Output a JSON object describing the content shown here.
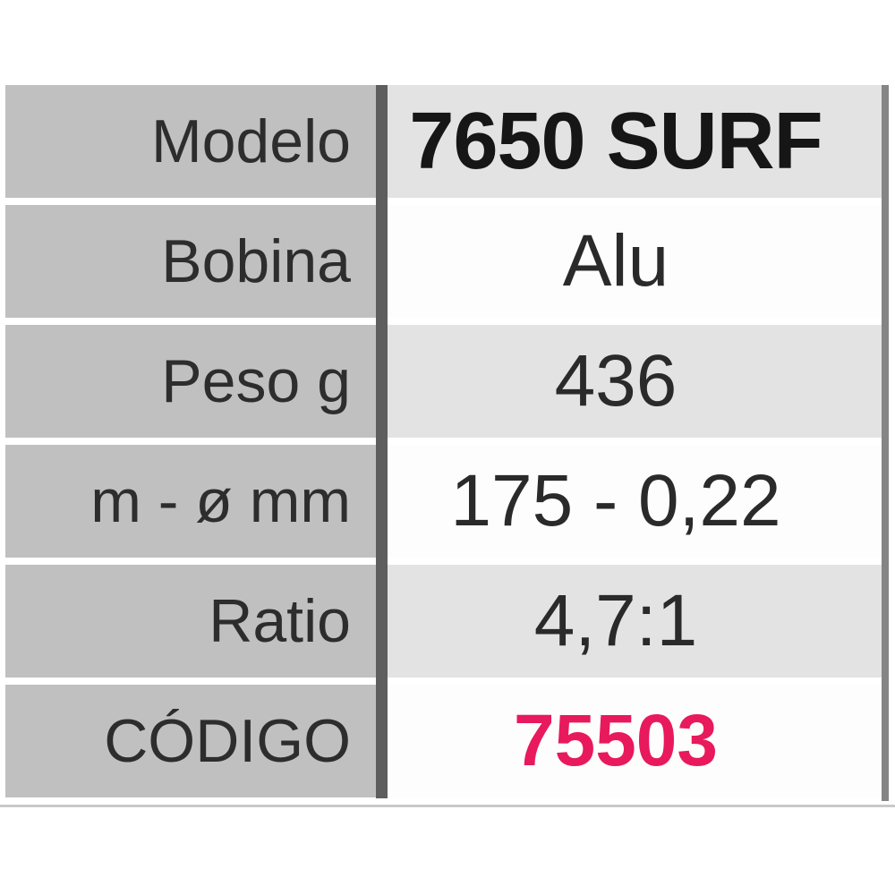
{
  "table": {
    "rows": [
      {
        "label": "Modelo",
        "value": "7650 SURF"
      },
      {
        "label": "Bobina",
        "value": "Alu"
      },
      {
        "label": "Peso g",
        "value": "436"
      },
      {
        "label": "m - ø mm",
        "value": "175 - 0,22"
      },
      {
        "label": "Ratio",
        "value": "4,7:1"
      },
      {
        "label": "CÓDIGO",
        "value": "75503"
      }
    ]
  },
  "colors": {
    "code_accent": "#e8195c",
    "label_cell_bg": "#c0c0c0",
    "value_alt_bg": "#e3e3e3",
    "value_white_bg": "#fdfdfd",
    "divider": "#5e5e5e",
    "right_border": "#858585",
    "bottom_rule": "#c9c9c9"
  }
}
